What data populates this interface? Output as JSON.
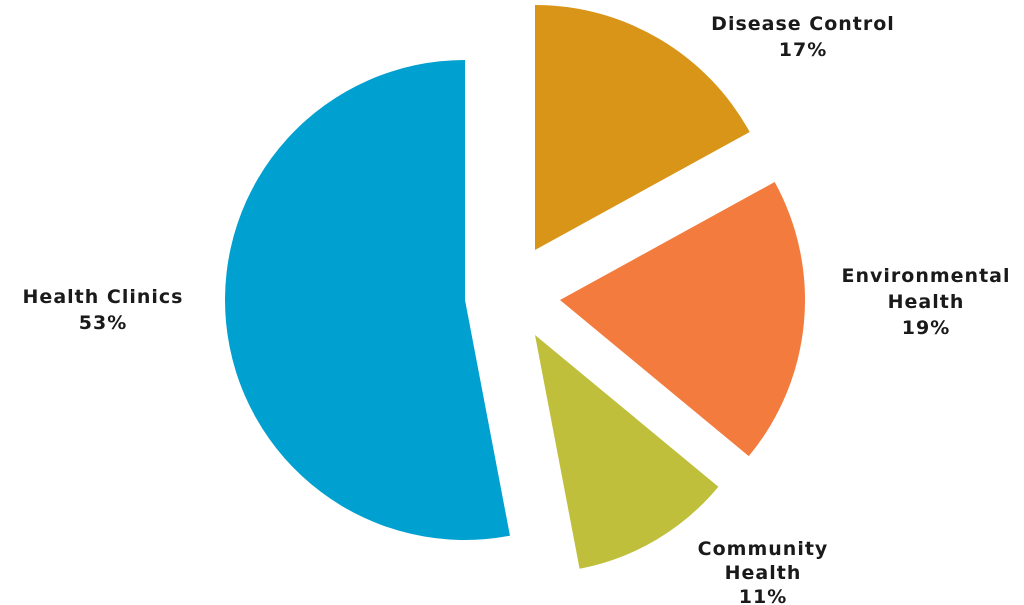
{
  "chart_data": {
    "type": "pie",
    "title": "",
    "exploded": true,
    "start": "12 o'clock",
    "direction": "clockwise",
    "slices": [
      {
        "name": "Disease Control",
        "label_lines": [
          "Disease Control",
          "17%"
        ],
        "value": 17,
        "color": "#d99518"
      },
      {
        "name": "Environmental Health",
        "label_lines": [
          "Environmental",
          "Health",
          "19%"
        ],
        "value": 19,
        "color": "#f27b3d"
      },
      {
        "name": "Community Health",
        "label_lines": [
          "Community",
          "Health",
          "11%"
        ],
        "value": 11,
        "color": "#bfbf3c"
      },
      {
        "name": "Health Clinics",
        "label_lines": [
          "Health Clinics",
          "53%"
        ],
        "value": 53,
        "color": "#00a0d0"
      }
    ]
  }
}
